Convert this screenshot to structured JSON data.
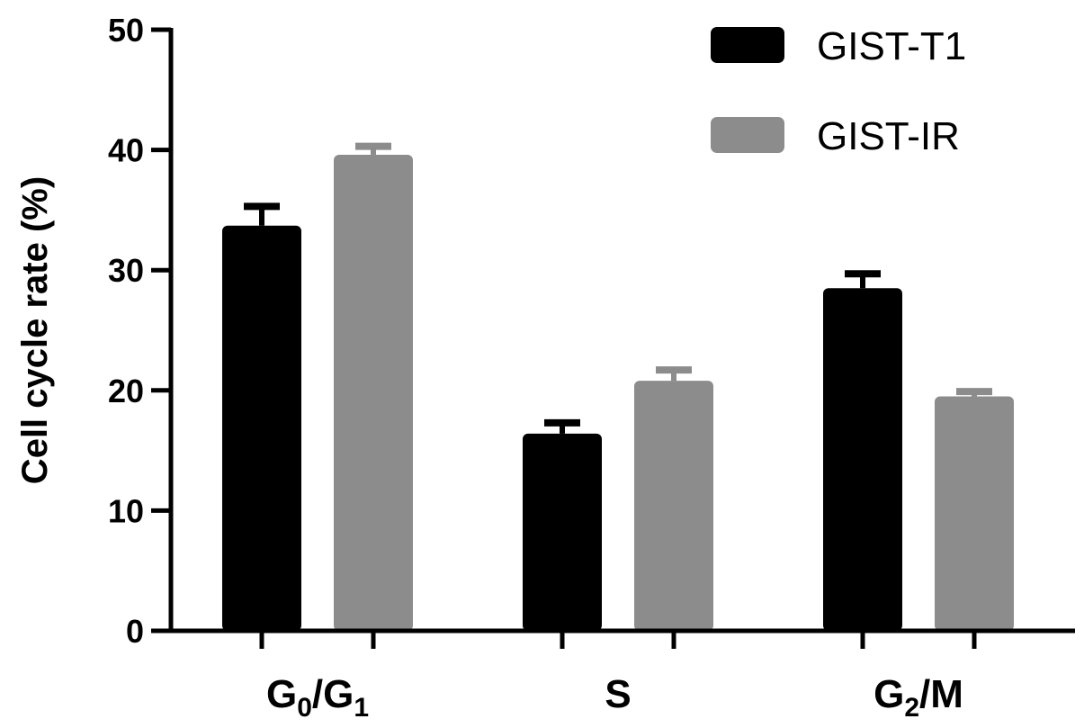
{
  "chart_data": {
    "type": "bar",
    "ylabel": "Cell cycle rate (%)",
    "xlabel": "",
    "ylim": [
      0,
      50
    ],
    "yticks": [
      0,
      10,
      20,
      30,
      40,
      50
    ],
    "grid": false,
    "legend_position": "top-right",
    "categories": [
      {
        "base": "G",
        "sub1": "0",
        "mid": "/G",
        "sub2": "1",
        "tail": ""
      },
      {
        "base": "S",
        "sub1": "",
        "mid": "",
        "sub2": "",
        "tail": ""
      },
      {
        "base": "G",
        "sub1": "2",
        "mid": "/M",
        "sub2": "",
        "tail": ""
      }
    ],
    "series": [
      {
        "name": "GIST-T1",
        "color": "#000000",
        "values": [
          33.7,
          16.4,
          28.5
        ],
        "errors": [
          1.6,
          0.9,
          1.2
        ]
      },
      {
        "name": "GIST-IR",
        "color": "#8c8c8c",
        "values": [
          39.6,
          20.8,
          19.5
        ],
        "errors": [
          0.7,
          0.9,
          0.4
        ]
      }
    ]
  }
}
